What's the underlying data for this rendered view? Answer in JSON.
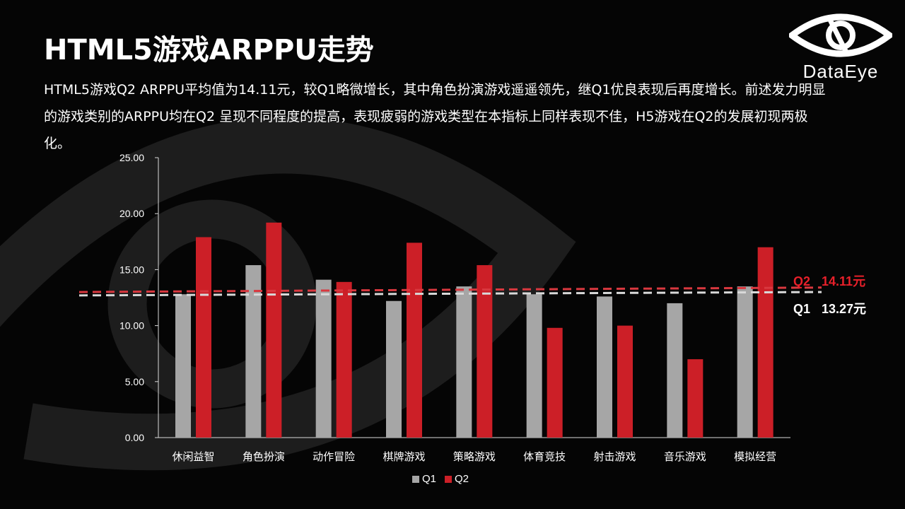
{
  "title": "HTML5游戏ARPPU走势",
  "description": "HTML5游戏Q2  ARPPU平均值为14.11元，较Q1略微增长，其中角色扮演游戏遥遥领先，继Q1优良表现后再度增长。前述发力明显的游戏类别的ARPPU均在Q2  呈现不同程度的提高，表现疲弱的游戏类型在本指标上同样表现不佳，H5游戏在Q2的发展初现两极化。",
  "logo": {
    "text": "DataEye",
    "icon": "dataeye-eye-logo-icon"
  },
  "colors": {
    "q1": "#a6a6a6",
    "q2": "#cc1f27",
    "q2_label": "#e8202a",
    "axis": "#d9d9d9",
    "background": "#050505"
  },
  "chart_data": {
    "type": "bar",
    "categories": [
      "休闲益智",
      "角色扮演",
      "动作冒险",
      "棋牌游戏",
      "策略游戏",
      "体育竞技",
      "射击游戏",
      "音乐游戏",
      "模拟经营"
    ],
    "series": [
      {
        "name": "Q1",
        "values": [
          12.8,
          15.4,
          14.1,
          12.2,
          13.5,
          12.8,
          12.6,
          12.0,
          13.5
        ]
      },
      {
        "name": "Q2",
        "values": [
          17.9,
          19.2,
          13.9,
          17.4,
          15.4,
          9.8,
          10.0,
          7.0,
          17.0
        ]
      }
    ],
    "yticks": [
      "0.00",
      "5.00",
      "10.00",
      "15.00",
      "20.00",
      "25.00"
    ],
    "ylim": [
      0,
      25
    ],
    "reference_lines": [
      {
        "series": "Q2",
        "label": "Q2",
        "value_label": "14.11元",
        "start": 13.0,
        "end": 13.4
      },
      {
        "series": "Q1",
        "label": "Q1",
        "value_label": "13.27元",
        "start": 12.7,
        "end": 13.0
      }
    ],
    "legend": "bottom",
    "grid": false
  }
}
